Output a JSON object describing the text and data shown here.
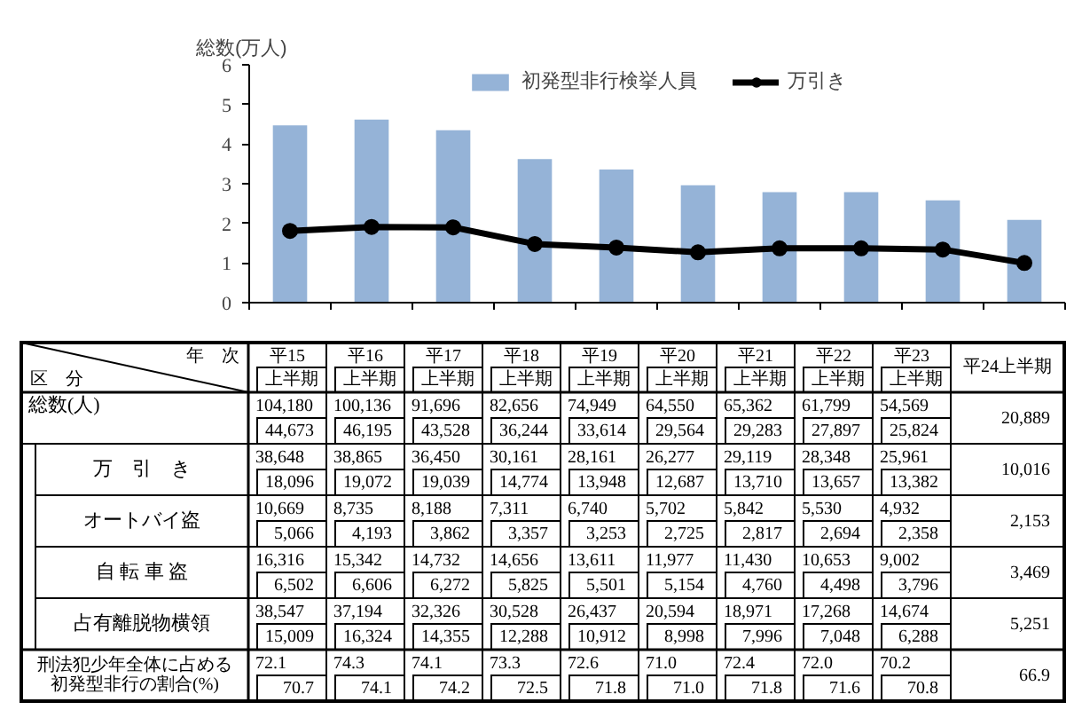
{
  "chart_data": [
    {
      "type": "bar",
      "categories": [
        null,
        null,
        null,
        null,
        null,
        null,
        null,
        null,
        null,
        null
      ],
      "ylabel": "総数(万人)",
      "ylim": [
        0,
        6
      ],
      "yticks": [
        0,
        1,
        2,
        3,
        4,
        5,
        6
      ],
      "legend": "top",
      "marker": "circle",
      "series": [
        {
          "name": "初発型非行検挙人員",
          "type": "bar",
          "color": "#95b3d7",
          "values": [
            4.47,
            4.62,
            4.35,
            3.62,
            3.36,
            2.96,
            2.79,
            2.79,
            2.58,
            2.09
          ]
        },
        {
          "name": "万引き",
          "type": "line",
          "color": "#000000",
          "values": [
            1.81,
            1.91,
            1.9,
            1.48,
            1.39,
            1.27,
            1.37,
            1.37,
            1.34,
            1.0
          ]
        }
      ]
    },
    {
      "type": "other",
      "categories": [
        "平15",
        "平16",
        "平17",
        "平18",
        "平19",
        "平20",
        "平21",
        "平22",
        "平23",
        "平24上半期"
      ],
      "annotations": [
        "年　次",
        "区　分",
        "上半期",
        "上半期",
        "上半期",
        "上半期",
        "上半期",
        "上半期",
        "上半期",
        "上半期",
        "上半期"
      ],
      "series": [
        {
          "name": "総数(人)",
          "values": [
            104180,
            100136,
            91696,
            82656,
            74949,
            64550,
            65362,
            61799,
            54569,
            null
          ],
          "value_labels": [
            "104,180",
            "100,136",
            "91,696",
            "82,656",
            "74,949",
            "64,550",
            "65,362",
            "61,799",
            "54,569",
            null
          ]
        },
        {
          "values": [
            44673,
            46195,
            43528,
            36244,
            33614,
            29564,
            29283,
            27897,
            25824,
            20889
          ],
          "value_labels": [
            "44,673",
            "46,195",
            "43,528",
            "36,244",
            "33,614",
            "29,564",
            "29,283",
            "27,897",
            "25,824",
            "20,889"
          ]
        },
        {
          "name": "万　引　き",
          "values": [
            38648,
            38865,
            36450,
            30161,
            28161,
            26277,
            29119,
            28348,
            25961,
            null
          ],
          "value_labels": [
            "38,648",
            "38,865",
            "36,450",
            "30,161",
            "28,161",
            "26,277",
            "29,119",
            "28,348",
            "25,961",
            null
          ]
        },
        {
          "values": [
            18096,
            19072,
            19039,
            14774,
            13948,
            12687,
            13710,
            13657,
            13382,
            10016
          ],
          "value_labels": [
            "18,096",
            "19,072",
            "19,039",
            "14,774",
            "13,948",
            "12,687",
            "13,710",
            "13,657",
            "13,382",
            "10,016"
          ]
        },
        {
          "name": "オートバイ盗",
          "values": [
            10669,
            8735,
            8188,
            7311,
            6740,
            5702,
            5842,
            5530,
            4932,
            null
          ],
          "value_labels": [
            "10,669",
            "8,735",
            "8,188",
            "7,311",
            "6,740",
            "5,702",
            "5,842",
            "5,530",
            "4,932",
            null
          ]
        },
        {
          "values": [
            5066,
            4193,
            3862,
            3357,
            3253,
            2725,
            2817,
            2694,
            2358,
            2153
          ],
          "value_labels": [
            "5,066",
            "4,193",
            "3,862",
            "3,357",
            "3,253",
            "2,725",
            "2,817",
            "2,694",
            "2,358",
            "2,153"
          ]
        },
        {
          "name": "自 転 車 盗",
          "values": [
            16316,
            15342,
            14732,
            14656,
            13611,
            11977,
            11430,
            10653,
            9002,
            null
          ],
          "value_labels": [
            "16,316",
            "15,342",
            "14,732",
            "14,656",
            "13,611",
            "11,977",
            "11,430",
            "10,653",
            "9,002",
            null
          ]
        },
        {
          "values": [
            6502,
            6606,
            6272,
            5825,
            5501,
            5154,
            4760,
            4498,
            3796,
            3469
          ],
          "value_labels": [
            "6,502",
            "6,606",
            "6,272",
            "5,825",
            "5,501",
            "5,154",
            "4,760",
            "4,498",
            "3,796",
            "3,469"
          ]
        },
        {
          "name": "占有離脱物横領",
          "values": [
            38547,
            37194,
            32326,
            30528,
            26437,
            20594,
            18971,
            17268,
            14674,
            null
          ],
          "value_labels": [
            "38,547",
            "37,194",
            "32,326",
            "30,528",
            "26,437",
            "20,594",
            "18,971",
            "17,268",
            "14,674",
            null
          ]
        },
        {
          "values": [
            15009,
            16324,
            14355,
            12288,
            10912,
            8998,
            7996,
            7048,
            6288,
            5251
          ],
          "value_labels": [
            "15,009",
            "16,324",
            "14,355",
            "12,288",
            "10,912",
            "8,998",
            "7,996",
            "7,048",
            "6,288",
            "5,251"
          ]
        },
        {
          "name": "刑法犯少年全体に占める初発型非行の割合(%)",
          "values": [
            72.1,
            74.3,
            74.1,
            73.3,
            72.6,
            71.0,
            72.4,
            72.0,
            70.2,
            null
          ],
          "value_labels": [
            "72.1",
            "74.3",
            "74.1",
            "73.3",
            "72.6",
            "71.0",
            "72.4",
            "72.0",
            "70.2",
            null
          ]
        },
        {
          "values": [
            70.7,
            74.1,
            74.2,
            72.5,
            71.8,
            71.0,
            71.8,
            71.6,
            70.8,
            66.9
          ],
          "value_labels": [
            "70.7",
            "74.1",
            "74.2",
            "72.5",
            "71.8",
            "71.0",
            "71.8",
            "71.6",
            "70.8",
            "66.9"
          ]
        }
      ]
    }
  ]
}
